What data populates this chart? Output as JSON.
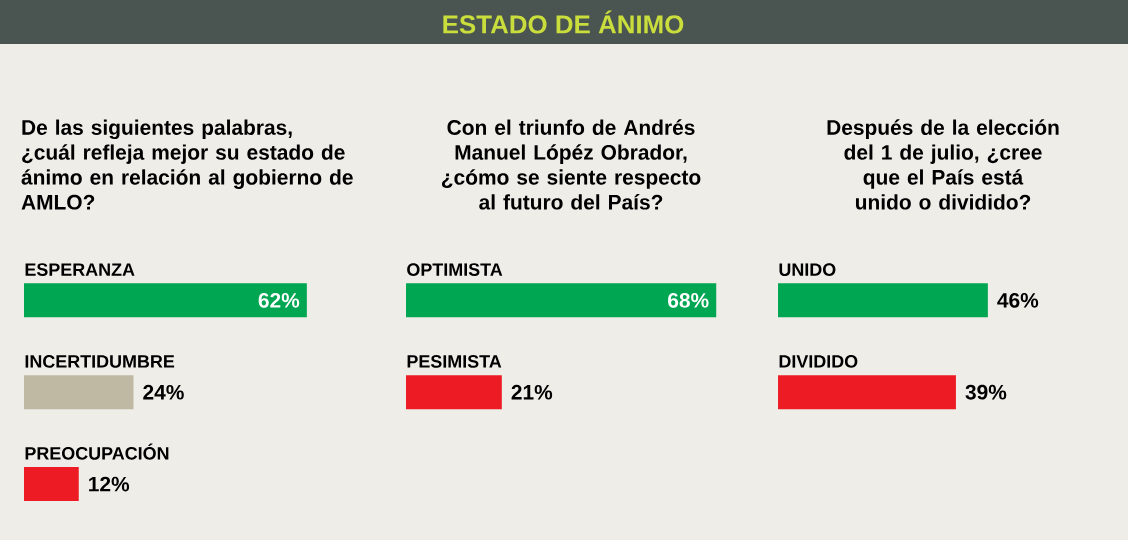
{
  "chart_data": [
    {
      "type": "bar",
      "orientation": "horizontal",
      "subtitle": "De las siguientes palabras, ¿cuál refleja mejor su estado de ánimo en relación al gobierno de AMLO?",
      "categories": [
        "ESPERANZA",
        "INCERTIDUMBRE",
        "PREOCUPACIÓN"
      ],
      "values": [
        62,
        24,
        12
      ],
      "colors": [
        "#00a651",
        "#bfb8a3",
        "#ed1c24"
      ],
      "value_labels": [
        "62%",
        "24%",
        "12%"
      ]
    },
    {
      "type": "bar",
      "orientation": "horizontal",
      "title": "ESTADO DE ÁNIMO",
      "subtitle": "Con el triunfo de Andrés Manuel Lópéz Obrador, ¿cómo se siente respecto al futuro del País?",
      "categories": [
        "OPTIMISTA",
        "PESIMISTA"
      ],
      "values": [
        68,
        21
      ],
      "colors": [
        "#00a651",
        "#ed1c24"
      ],
      "value_labels": [
        "68%",
        "21%"
      ]
    },
    {
      "type": "bar",
      "orientation": "horizontal",
      "subtitle": "Después de la elección del 1 de julio, ¿cree que el País está unido o dividido?",
      "categories": [
        "UNIDO",
        "DIVIDIDO"
      ],
      "values": [
        46,
        39
      ],
      "colors": [
        "#00a651",
        "#ed1c24"
      ],
      "value_labels": [
        "46%",
        "39%"
      ]
    }
  ]
}
